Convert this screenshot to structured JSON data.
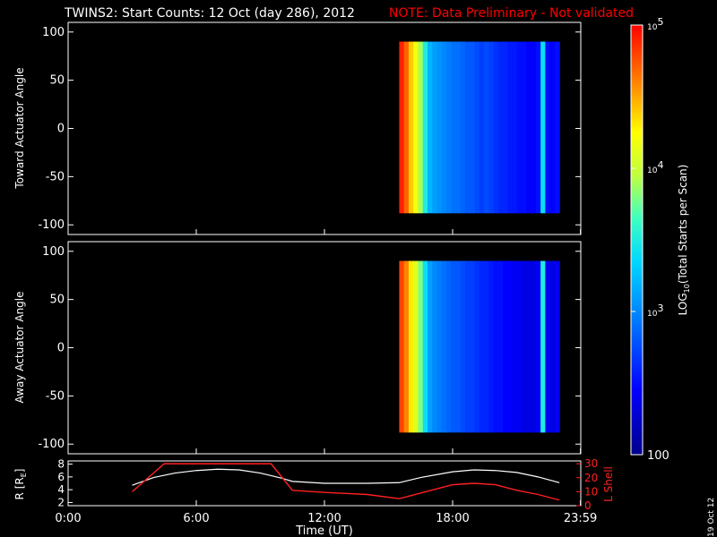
{
  "header": {
    "title": "TWINS2: Start Counts: 12 Oct (day 286), 2012",
    "note": "NOTE: Data Preliminary - Not validated"
  },
  "stamp": "19 Oct 12",
  "colors": {
    "background": "#000000",
    "axes": "#ffffff",
    "note": "#ff0000",
    "r_line": "#ffffff",
    "lshell_line": "#ff2020"
  },
  "chart_data": [
    {
      "type": "heatmap",
      "ylabel": "Toward Actuator Angle",
      "yticks": [
        "100",
        "50",
        "0",
        "-50",
        "-100"
      ],
      "ylim": [
        -110,
        110
      ],
      "xlim_hours": [
        0,
        24
      ],
      "data_start_hours": 15.5,
      "data_end_hours": 23.0,
      "angle_range": [
        -88,
        90
      ],
      "profile_log10": [
        4.9,
        4.7,
        4.4,
        4.2,
        3.9,
        3.5,
        3.2,
        3.1,
        3.05,
        3.0,
        2.95,
        2.9,
        2.9,
        2.85,
        2.8,
        2.8,
        2.75,
        2.7,
        2.75,
        2.7,
        2.65,
        2.6,
        2.6,
        2.55,
        2.55,
        2.5,
        2.5,
        2.45,
        2.45,
        2.5,
        3.4,
        2.5,
        2.45,
        2.5
      ]
    },
    {
      "type": "heatmap",
      "ylabel": "Away Actuator Angle",
      "yticks": [
        "100",
        "50",
        "0",
        "-50",
        "-100"
      ],
      "ylim": [
        -110,
        110
      ],
      "xlim_hours": [
        0,
        24
      ],
      "data_start_hours": 15.5,
      "data_end_hours": 23.0,
      "angle_range": [
        -88,
        90
      ],
      "profile_log10": [
        4.8,
        4.6,
        4.3,
        4.1,
        3.8,
        3.4,
        3.1,
        3.0,
        2.95,
        2.9,
        2.85,
        2.8,
        2.8,
        2.75,
        2.7,
        2.7,
        2.65,
        2.6,
        2.6,
        2.55,
        2.5,
        2.5,
        2.45,
        2.45,
        2.4,
        2.4,
        2.35,
        2.35,
        2.35,
        2.4,
        3.5,
        2.4,
        2.35,
        2.4
      ]
    },
    {
      "type": "line",
      "ylabel": "R [R",
      "ylabel_sub": "E",
      "ylabel_end": "]",
      "y2label": "L Shell",
      "yticks": [
        "8",
        "6",
        "4",
        "2"
      ],
      "y2ticks": [
        "30",
        "20",
        "10",
        "0"
      ],
      "ylim": [
        1.5,
        8.5
      ],
      "y2lim": [
        0,
        32
      ],
      "xlabel": "Time (UT)",
      "xticks": [
        "0:00",
        "6:00",
        "12:00",
        "18:00",
        "23:59"
      ],
      "series": [
        {
          "name": "R",
          "x": [
            3.0,
            4.0,
            5.0,
            6.0,
            7.0,
            8.0,
            9.0,
            10.0,
            10.5,
            12.0,
            14.0,
            15.5,
            16.5,
            18.0,
            19.0,
            20.0,
            21.0,
            22.0,
            23.0
          ],
          "y": [
            4.7,
            5.9,
            6.6,
            7.0,
            7.2,
            7.1,
            6.6,
            5.8,
            5.3,
            5.0,
            5.0,
            5.1,
            5.9,
            6.8,
            7.1,
            7.0,
            6.7,
            6.0,
            5.1
          ]
        },
        {
          "name": "L Shell",
          "x": [
            3.0,
            4.5,
            9.5,
            10.5,
            12.0,
            14.0,
            15.5,
            16.5,
            18.0,
            19.0,
            20.0,
            21.0,
            22.0,
            23.0
          ],
          "y": [
            10,
            30,
            30,
            11,
            9.5,
            8,
            5,
            9,
            15,
            16,
            15,
            11,
            8,
            4
          ]
        }
      ]
    }
  ],
  "colorbar": {
    "label_main": "LOG",
    "label_sub": "10",
    "label_rest": "(Total Starts per Scan)",
    "ticks": [
      "10",
      "10",
      "10"
    ],
    "tick_exps": [
      "5",
      "4",
      "3"
    ],
    "bottom_tick": "100",
    "range_log10": [
      2,
      5
    ]
  }
}
